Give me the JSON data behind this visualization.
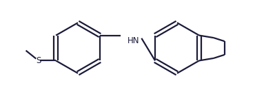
{
  "bg_color": "#ffffff",
  "line_color": "#1a1a3a",
  "line_width": 1.6,
  "font_size": 8.5,
  "figsize": [
    3.7,
    1.4
  ],
  "dpi": 100,
  "xlim": [
    0,
    10.5
  ],
  "ylim": [
    0.2,
    4.0
  ]
}
